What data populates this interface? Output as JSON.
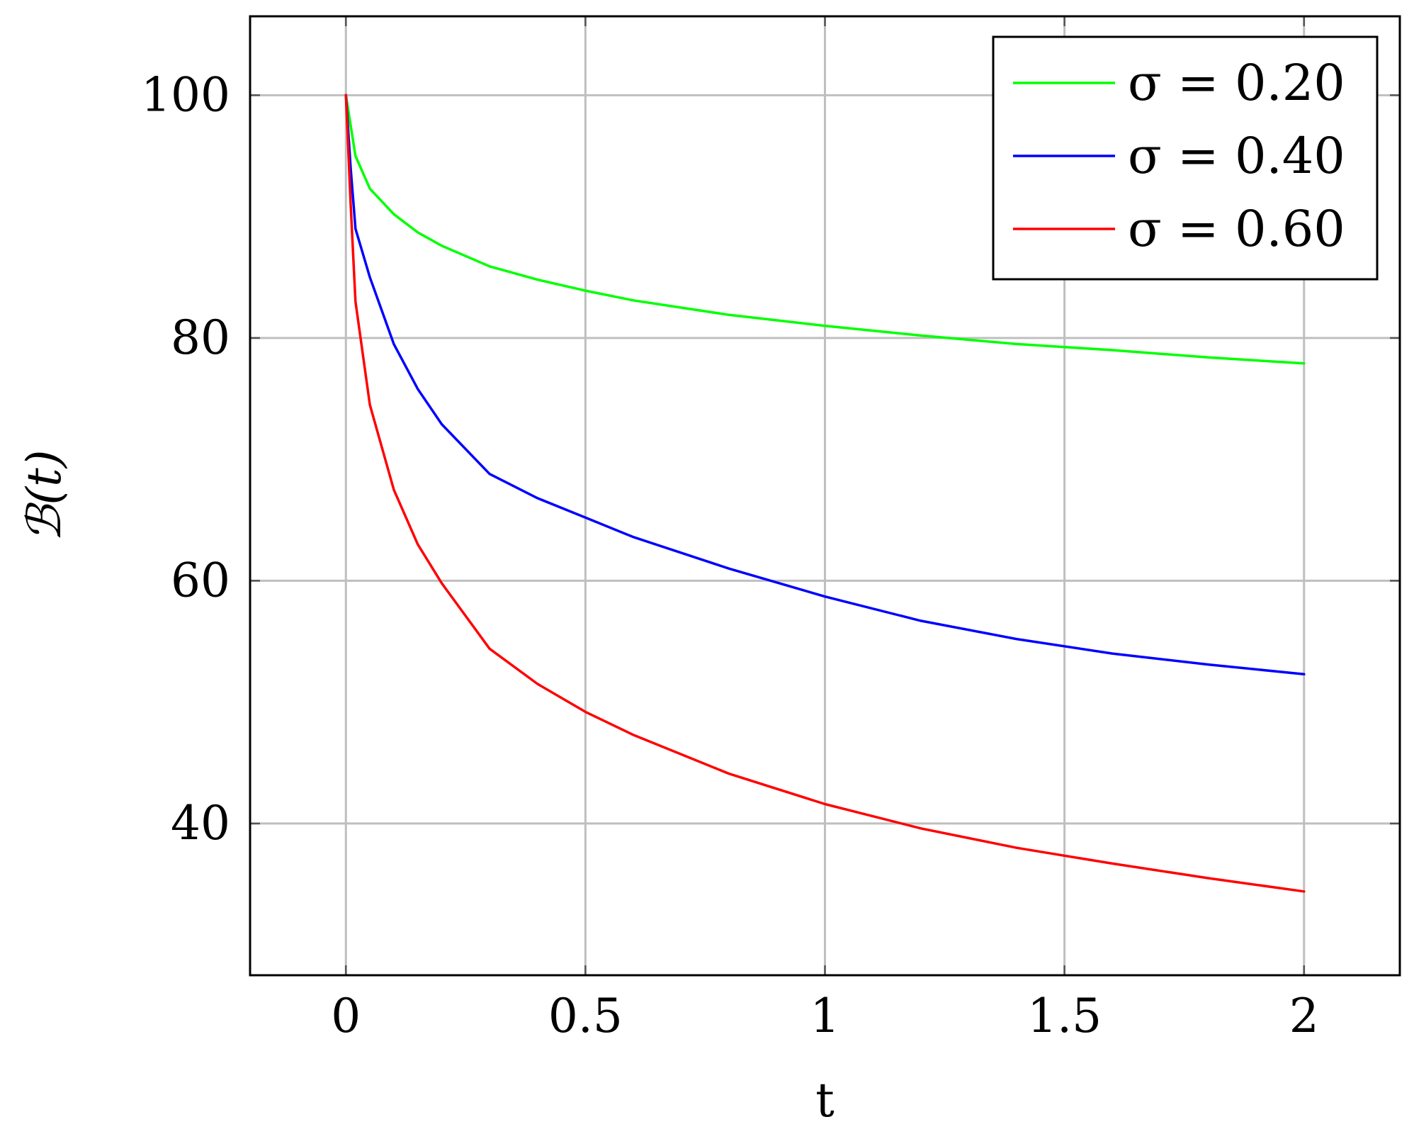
{
  "chart_data": {
    "type": "line",
    "title": "",
    "xlabel": "t",
    "ylabel": "ℬ(t)",
    "xlim": [
      -0.2,
      2.2
    ],
    "ylim": [
      27.5,
      106.5
    ],
    "grid": true,
    "legend_placement": "top-right",
    "x_ticks": [
      "0",
      "0.5",
      "1",
      "1.5",
      "2"
    ],
    "x_tick_values": [
      0,
      0.5,
      1,
      1.5,
      2
    ],
    "y_ticks": [
      "40",
      "60",
      "80",
      "100"
    ],
    "y_tick_values": [
      40,
      60,
      80,
      100
    ],
    "colors": {
      "grid": "#bfbfbf",
      "frame": "#000000"
    },
    "x": [
      0,
      0.01,
      0.02,
      0.05,
      0.1,
      0.15,
      0.2,
      0.3,
      0.4,
      0.5,
      0.6,
      0.8,
      1.0,
      1.2,
      1.4,
      1.6,
      1.8,
      2.0
    ],
    "series": [
      {
        "name": "σ = 0.20",
        "color": "#00ff00",
        "values": [
          100,
          97.5,
          95,
          92.3,
          90.2,
          88.7,
          87.6,
          85.9,
          84.8,
          83.9,
          83.1,
          81.9,
          81.0,
          80.2,
          79.5,
          79.0,
          78.4,
          77.9
        ]
      },
      {
        "name": "σ = 0.40",
        "color": "#0000ff",
        "values": [
          100,
          94,
          89,
          85,
          79.5,
          75.8,
          72.9,
          68.8,
          66.8,
          65.2,
          63.6,
          61.0,
          58.7,
          56.7,
          55.2,
          54.0,
          53.1,
          52.3
        ]
      },
      {
        "name": "σ = 0.60",
        "color": "#ff0000",
        "values": [
          100,
          91,
          83,
          74.5,
          67.5,
          63.0,
          59.8,
          54.4,
          51.5,
          49.2,
          47.3,
          44.1,
          41.6,
          39.6,
          38.0,
          36.7,
          35.5,
          34.4
        ]
      }
    ]
  }
}
